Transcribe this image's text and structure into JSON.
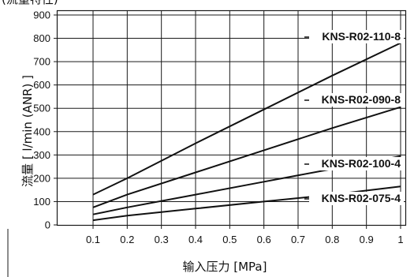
{
  "chart_data": {
    "type": "line",
    "title": "",
    "xlabel": "输入压力 [MPa]",
    "ylabel": "流量 [ l/min (ANR) ]",
    "xlim": [
      0.1,
      1
    ],
    "ylim": [
      0,
      900
    ],
    "x_ticks": [
      "0.1",
      "0.2",
      "0.3",
      "0.4",
      "0.5",
      "0.6",
      "0.7",
      "0.8",
      "0.9",
      "1"
    ],
    "y_ticks": [
      "0",
      "100",
      "200",
      "300",
      "400",
      "500",
      "600",
      "700",
      "800",
      "900"
    ],
    "grid": true,
    "series": [
      {
        "name": "KNS-R02-110-8",
        "x": [
          0.1,
          0.2,
          0.4,
          0.6,
          0.8,
          1.0
        ],
        "y": [
          130,
          200,
          350,
          495,
          640,
          780
        ]
      },
      {
        "name": "KNS-R02-090-8",
        "x": [
          0.1,
          0.2,
          0.4,
          0.6,
          0.8,
          1.0
        ],
        "y": [
          75,
          130,
          225,
          320,
          415,
          505
        ]
      },
      {
        "name": "KNS-R02-100-4",
        "x": [
          0.1,
          0.2,
          0.4,
          0.6,
          0.8,
          1.0
        ],
        "y": [
          45,
          75,
          130,
          185,
          240,
          295
        ]
      },
      {
        "name": "KNS-R02-075-4",
        "x": [
          0.1,
          0.2,
          0.4,
          0.6,
          0.8,
          1.0
        ],
        "y": [
          20,
          40,
          70,
          100,
          130,
          165
        ]
      }
    ]
  },
  "header_fragment": "(流量特性)"
}
